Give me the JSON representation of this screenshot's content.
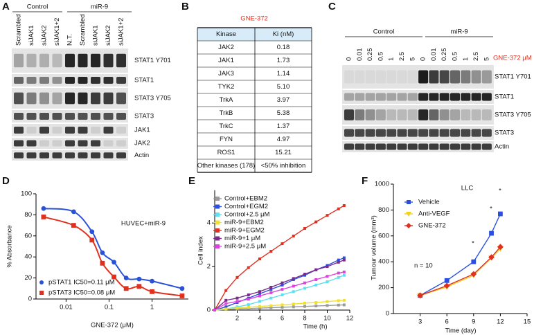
{
  "panel_labels": [
    "A",
    "B",
    "C",
    "D",
    "E",
    "F"
  ],
  "panel_a": {
    "groups": [
      "Control",
      "miR-9"
    ],
    "lanes": [
      "Scrambled",
      "siJAK1",
      "siJAK2",
      "siJAK1+2",
      "N.T.",
      "Scrambled",
      "siJAK1",
      "siJAK2",
      "siJAK1+2"
    ],
    "rows": [
      "STAT1 Y701",
      "STAT1",
      "STAT3 Y705",
      "STAT3",
      "JAK1",
      "JAK2",
      "Actin"
    ]
  },
  "panel_b": {
    "title": "GNE-372",
    "header": [
      "Kinase",
      "Ki (nM)"
    ],
    "rows": [
      [
        "JAK2",
        "0.18"
      ],
      [
        "JAK1",
        "1.73"
      ],
      [
        "JAK3",
        "1.14"
      ],
      [
        "TYK2",
        "5.10"
      ],
      [
        "TrkA",
        "3.97"
      ],
      [
        "TrkB",
        "5.38"
      ],
      [
        "TrkC",
        "1.37"
      ],
      [
        "FYN",
        "4.97"
      ],
      [
        "ROS1",
        "15.21"
      ],
      [
        "Other kinases (178)",
        "<50% inhibition"
      ]
    ]
  },
  "panel_c": {
    "groups": [
      "Control",
      "miR-9"
    ],
    "lanes": [
      "0",
      "0.01",
      "0.25",
      "0.5",
      "1",
      "2.5",
      "5",
      "0",
      "0.01",
      "0.25",
      "0.5",
      "1",
      "2.5",
      "5"
    ],
    "unit_label": "GNE-372 μM",
    "rows": [
      "STAT1 Y701",
      "STAT1",
      "STAT3 Y705",
      "STAT3",
      "Actin"
    ]
  },
  "chart_data": [
    {
      "type": "scatter",
      "annotation": "HUVEC+miR-9",
      "x_label": "GNE-372 (μM)",
      "y_label": "% Absorbance",
      "xscale": "log",
      "xlim": [
        0.002,
        7
      ],
      "xticks": [
        0.01,
        0.1,
        1
      ],
      "ylim": [
        0,
        100
      ],
      "yticks": [
        0,
        20,
        40,
        60,
        80,
        100
      ],
      "trendline": true,
      "legend": "bottom-left",
      "series": [
        {
          "name": "pSTAT1 IC50=0.11 μM",
          "color": "#2a52d6",
          "marker": "circle",
          "x": [
            0.003,
            0.015,
            0.04,
            0.07,
            0.13,
            0.25,
            0.5,
            1.0,
            5.0
          ],
          "values": [
            86,
            83,
            64,
            44,
            35,
            20,
            19,
            17,
            10
          ]
        },
        {
          "name": "pSTAT3 IC50=0.08 μM",
          "color": "#e0301e",
          "marker": "square",
          "x": [
            0.003,
            0.015,
            0.04,
            0.07,
            0.13,
            0.25,
            0.5,
            1.0,
            5.0
          ],
          "values": [
            78,
            70,
            56,
            34,
            21,
            10,
            12,
            7,
            3
          ]
        }
      ]
    },
    {
      "type": "line",
      "x_label": "Time (h)",
      "y_label": "Cell index",
      "xlim": [
        0,
        12
      ],
      "xticks": [
        2,
        4,
        6,
        8,
        10,
        12
      ],
      "ylim": [
        0,
        5.5
      ],
      "yticks": [
        0,
        2,
        4
      ],
      "legend": "top-left",
      "x": [
        0,
        1,
        2,
        3,
        4,
        5,
        6,
        7,
        8,
        9,
        10,
        11,
        11.5
      ],
      "series": [
        {
          "name": "Control+EBM2",
          "color": "#9a9a9a",
          "marker": "square",
          "values": [
            0,
            0.03,
            0.05,
            0.07,
            0.09,
            0.11,
            0.13,
            0.15,
            0.17,
            0.19,
            0.21,
            0.23,
            0.24
          ]
        },
        {
          "name": "Control+EGM2",
          "color": "#2a4fe0",
          "marker": "square",
          "values": [
            0,
            0.15,
            0.35,
            0.55,
            0.75,
            0.95,
            1.15,
            1.4,
            1.6,
            1.85,
            2.05,
            2.3,
            2.4
          ]
        },
        {
          "name": "Control+2.5 μM",
          "color": "#5fe0f0",
          "marker": "square",
          "values": [
            0,
            0.05,
            0.15,
            0.25,
            0.4,
            0.55,
            0.7,
            0.85,
            1.0,
            1.15,
            1.3,
            1.5,
            1.6
          ]
        },
        {
          "name": "miR-9+EBM2",
          "color": "#f0e030",
          "marker": "square",
          "values": [
            0,
            0.05,
            0.1,
            0.13,
            0.17,
            0.2,
            0.24,
            0.28,
            0.32,
            0.35,
            0.39,
            0.43,
            0.45
          ]
        },
        {
          "name": "miR-9+EGM2",
          "color": "#e03020",
          "marker": "square",
          "values": [
            0,
            0.9,
            1.5,
            1.95,
            2.35,
            2.7,
            3.05,
            3.4,
            3.75,
            4.05,
            4.35,
            4.65,
            4.8
          ]
        },
        {
          "name": "miR-9+1 μM",
          "color": "#7a2a8a",
          "marker": "square",
          "values": [
            0,
            0.45,
            0.55,
            0.7,
            0.85,
            1.05,
            1.25,
            1.45,
            1.65,
            1.85,
            2.0,
            2.2,
            2.3
          ]
        },
        {
          "name": "miR-9+2.5 μM",
          "color": "#e040e0",
          "marker": "square",
          "values": [
            0,
            0.3,
            0.4,
            0.5,
            0.65,
            0.8,
            0.95,
            1.1,
            1.25,
            1.4,
            1.55,
            1.7,
            1.75
          ]
        }
      ]
    },
    {
      "type": "line",
      "title": "LLC",
      "x_label": "Time (day)",
      "y_label": "Tumour volume (mm³)",
      "xlim": [
        0,
        15
      ],
      "xticks": [
        3,
        6,
        9,
        12,
        15
      ],
      "ylim": [
        0,
        1000
      ],
      "yticks": [
        0,
        200,
        400,
        600,
        800,
        1000
      ],
      "legend": "top-left",
      "x": [
        3,
        6,
        9,
        11,
        12
      ],
      "annotations": [
        "*",
        "*",
        "*",
        "n = 10"
      ],
      "series": [
        {
          "name": "Vehicle",
          "color": "#2a4fe0",
          "marker": "square",
          "values": [
            140,
            255,
            400,
            620,
            770
          ]
        },
        {
          "name": "Anti-VEGF",
          "color": "#f0d020",
          "marker": "triangle",
          "values": [
            140,
            205,
            295,
            430,
            500
          ]
        },
        {
          "name": "GNE-372",
          "color": "#e03020",
          "marker": "diamond",
          "values": [
            140,
            215,
            305,
            435,
            515
          ]
        }
      ]
    }
  ]
}
